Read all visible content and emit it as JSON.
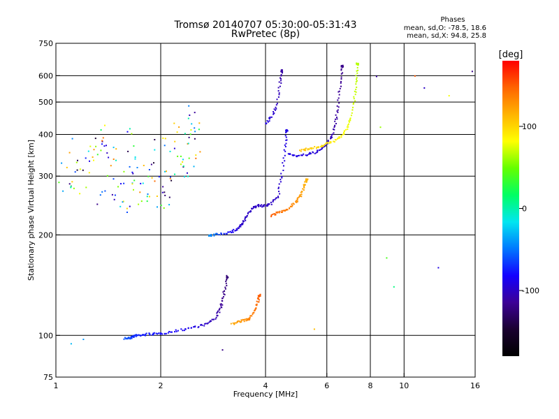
{
  "header": {
    "title_line1": "Tromsø 20140707 05:30:00-05:31:43",
    "title_line2": "RwPretec (8p)"
  },
  "phases": {
    "heading": "Phases",
    "line_o": "mean, sd,O: -78.5, 18.6",
    "line_x": "mean, sd,X:  94.8, 25.8"
  },
  "chart_data": {
    "type": "scatter",
    "title": "Tromsø 20140707 05:30:00-05:31:43",
    "subtitle": "RwPretec (8p)",
    "xlabel": "Frequency [MHz]",
    "ylabel": "Stationary phase Virtual Height [km]",
    "xscale": "log",
    "yscale": "log",
    "xlim": [
      1,
      16
    ],
    "ylim": [
      75,
      750
    ],
    "xticks": [
      1,
      2,
      4,
      6,
      8,
      10,
      16
    ],
    "xtick_labels": [
      "1",
      "2",
      "4",
      "6",
      "8",
      "10",
      "16"
    ],
    "yticks": [
      75,
      100,
      200,
      300,
      400,
      500,
      600,
      750
    ],
    "ytick_labels": [
      "75",
      "100",
      "200",
      "300",
      "400",
      "500",
      "600",
      "750"
    ],
    "grid": true,
    "colorbar": {
      "label": "[deg]",
      "range": [
        -180,
        180
      ],
      "ticks": [
        -100,
        0,
        100
      ],
      "tick_labels": [
        "-100",
        "0",
        "100"
      ],
      "colors": [
        "#000000",
        "#1a0030",
        "#3c0096",
        "#1400ff",
        "#0078ff",
        "#00e6f0",
        "#00ff64",
        "#64ff00",
        "#ffff00",
        "#ffb400",
        "#ff6400",
        "#ff0000"
      ]
    },
    "traces": [
      {
        "name": "E-layer O",
        "x": [
          1.58,
          1.62,
          1.66,
          1.7,
          1.76,
          1.85,
          1.95,
          2.1,
          2.3,
          2.5,
          2.7,
          2.85,
          2.95,
          3.0,
          3.05,
          3.1
        ],
        "y": [
          98,
          98,
          99,
          100,
          100,
          101,
          101,
          102,
          104,
          106,
          108,
          112,
          118,
          125,
          135,
          150
        ],
        "phase": [
          -60,
          -60,
          -70,
          -70,
          -75,
          -75,
          -78,
          -80,
          -85,
          -90,
          -100,
          -105,
          -110,
          -115,
          -120,
          -125
        ]
      },
      {
        "name": "E-layer X",
        "x": [
          3.2,
          3.35,
          3.5,
          3.6,
          3.7,
          3.8,
          3.85
        ],
        "y": [
          108,
          110,
          111,
          112,
          118,
          126,
          132
        ],
        "phase": [
          120,
          125,
          130,
          135,
          140,
          145,
          150
        ]
      },
      {
        "name": "F1 cusp O",
        "x": [
          2.75,
          2.85,
          3.0,
          3.2,
          3.35,
          3.45,
          3.55,
          3.65,
          3.8,
          3.95,
          4.15,
          4.35,
          4.45,
          4.55,
          4.6
        ],
        "y": [
          198,
          200,
          202,
          204,
          210,
          218,
          228,
          240,
          245,
          244,
          248,
          262,
          300,
          360,
          410
        ],
        "phase": [
          -40,
          -50,
          -70,
          -85,
          -95,
          -100,
          -100,
          -100,
          -100,
          -100,
          -100,
          -100,
          -95,
          -90,
          -90
        ]
      },
      {
        "name": "F1 cusp X",
        "x": [
          4.15,
          4.3,
          4.5,
          4.7,
          4.9,
          5.05,
          5.15,
          5.25
        ],
        "y": [
          228,
          232,
          236,
          242,
          252,
          262,
          276,
          292
        ],
        "phase": [
          150,
          145,
          140,
          135,
          130,
          125,
          120,
          115
        ]
      },
      {
        "name": "F2 O",
        "x": [
          4.65,
          4.9,
          5.2,
          5.5,
          5.8,
          6.0,
          6.2,
          6.35,
          6.45,
          6.55,
          6.65
        ],
        "y": [
          350,
          345,
          347,
          352,
          362,
          375,
          395,
          430,
          480,
          560,
          640
        ],
        "phase": [
          -90,
          -90,
          -92,
          -94,
          -96,
          -100,
          -105,
          -110,
          -112,
          -115,
          -118
        ]
      },
      {
        "name": "F2 X",
        "x": [
          5.05,
          5.3,
          5.6,
          5.9,
          6.2,
          6.55,
          6.85,
          7.05,
          7.2,
          7.3,
          7.35
        ],
        "y": [
          358,
          362,
          366,
          372,
          380,
          392,
          415,
          450,
          510,
          580,
          650
        ],
        "phase": [
          110,
          105,
          100,
          95,
          90,
          85,
          80,
          75,
          70,
          68,
          66
        ]
      },
      {
        "name": "Sporadic band",
        "x": [
          1.05,
          1.15,
          1.25,
          1.35,
          1.45,
          1.55,
          1.65,
          1.75,
          1.9,
          2.05,
          2.2,
          2.35,
          2.5
        ],
        "y": [
          300,
          330,
          280,
          350,
          310,
          270,
          360,
          300,
          330,
          290,
          350,
          370,
          390
        ],
        "phase": [
          -110,
          40,
          -90,
          120,
          -60,
          10,
          -120,
          80,
          -30,
          150,
          -100,
          60,
          130
        ]
      },
      {
        "name": "High-altitude spurs",
        "x": [
          4.0,
          4.15,
          4.3,
          4.4,
          4.45
        ],
        "y": [
          430,
          450,
          480,
          560,
          620
        ],
        "phase": [
          -90,
          -95,
          -100,
          -105,
          -110
        ]
      },
      {
        "name": "Scattered echoes",
        "x": [
          8.3,
          8.5,
          8.9,
          9.4,
          10.8,
          11.5,
          12.6,
          13.5,
          15.7,
          15.9,
          1.1,
          1.2,
          3.0,
          5.5
        ],
        "y": [
          600,
          420,
          170,
          140,
          600,
          550,
          160,
          520,
          620,
          180,
          95,
          98,
          90,
          105
        ],
        "phase": [
          -110,
          60,
          40,
          10,
          150,
          -100,
          -90,
          80,
          -120,
          70,
          -30,
          -40,
          -120,
          110
        ]
      }
    ]
  }
}
